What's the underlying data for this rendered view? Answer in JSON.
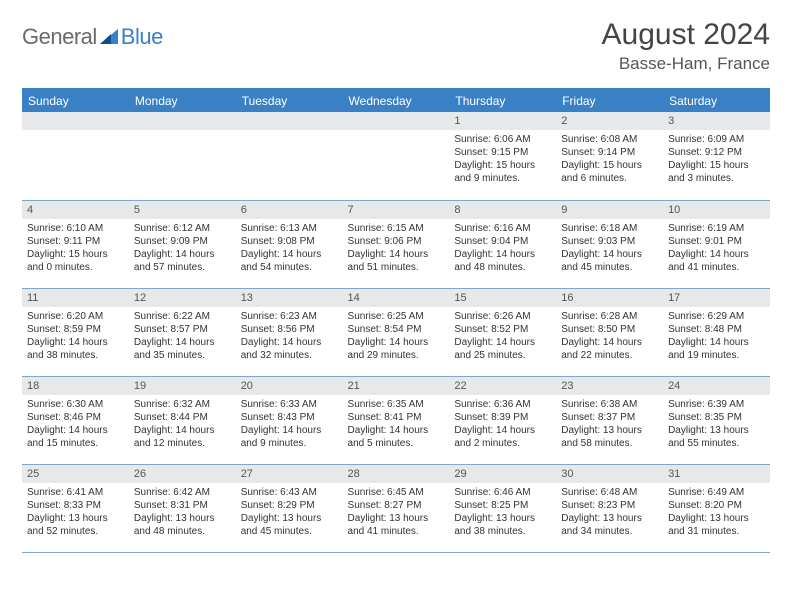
{
  "logo": {
    "part1": "General",
    "part2": "Blue"
  },
  "title": "August 2024",
  "location": "Basse-Ham, France",
  "colors": {
    "accent": "#3a80c4",
    "header_bg": "#3a80c4",
    "header_text": "#ffffff",
    "daynum_bg": "#e7e8e9",
    "row_border": "#7ea8cc",
    "text": "#333333",
    "logo_gray": "#6a6a6a",
    "logo_blue": "#3a80c4",
    "background": "#ffffff"
  },
  "typography": {
    "title_fontsize": 30,
    "location_fontsize": 17,
    "weekday_fontsize": 12,
    "daynum_fontsize": 11,
    "body_fontsize": 10
  },
  "weekdays": [
    "Sunday",
    "Monday",
    "Tuesday",
    "Wednesday",
    "Thursday",
    "Friday",
    "Saturday"
  ],
  "weeks": [
    [
      null,
      null,
      null,
      null,
      {
        "n": "1",
        "sunrise": "Sunrise: 6:06 AM",
        "sunset": "Sunset: 9:15 PM",
        "daylight": "Daylight: 15 hours and 9 minutes."
      },
      {
        "n": "2",
        "sunrise": "Sunrise: 6:08 AM",
        "sunset": "Sunset: 9:14 PM",
        "daylight": "Daylight: 15 hours and 6 minutes."
      },
      {
        "n": "3",
        "sunrise": "Sunrise: 6:09 AM",
        "sunset": "Sunset: 9:12 PM",
        "daylight": "Daylight: 15 hours and 3 minutes."
      }
    ],
    [
      {
        "n": "4",
        "sunrise": "Sunrise: 6:10 AM",
        "sunset": "Sunset: 9:11 PM",
        "daylight": "Daylight: 15 hours and 0 minutes."
      },
      {
        "n": "5",
        "sunrise": "Sunrise: 6:12 AM",
        "sunset": "Sunset: 9:09 PM",
        "daylight": "Daylight: 14 hours and 57 minutes."
      },
      {
        "n": "6",
        "sunrise": "Sunrise: 6:13 AM",
        "sunset": "Sunset: 9:08 PM",
        "daylight": "Daylight: 14 hours and 54 minutes."
      },
      {
        "n": "7",
        "sunrise": "Sunrise: 6:15 AM",
        "sunset": "Sunset: 9:06 PM",
        "daylight": "Daylight: 14 hours and 51 minutes."
      },
      {
        "n": "8",
        "sunrise": "Sunrise: 6:16 AM",
        "sunset": "Sunset: 9:04 PM",
        "daylight": "Daylight: 14 hours and 48 minutes."
      },
      {
        "n": "9",
        "sunrise": "Sunrise: 6:18 AM",
        "sunset": "Sunset: 9:03 PM",
        "daylight": "Daylight: 14 hours and 45 minutes."
      },
      {
        "n": "10",
        "sunrise": "Sunrise: 6:19 AM",
        "sunset": "Sunset: 9:01 PM",
        "daylight": "Daylight: 14 hours and 41 minutes."
      }
    ],
    [
      {
        "n": "11",
        "sunrise": "Sunrise: 6:20 AM",
        "sunset": "Sunset: 8:59 PM",
        "daylight": "Daylight: 14 hours and 38 minutes."
      },
      {
        "n": "12",
        "sunrise": "Sunrise: 6:22 AM",
        "sunset": "Sunset: 8:57 PM",
        "daylight": "Daylight: 14 hours and 35 minutes."
      },
      {
        "n": "13",
        "sunrise": "Sunrise: 6:23 AM",
        "sunset": "Sunset: 8:56 PM",
        "daylight": "Daylight: 14 hours and 32 minutes."
      },
      {
        "n": "14",
        "sunrise": "Sunrise: 6:25 AM",
        "sunset": "Sunset: 8:54 PM",
        "daylight": "Daylight: 14 hours and 29 minutes."
      },
      {
        "n": "15",
        "sunrise": "Sunrise: 6:26 AM",
        "sunset": "Sunset: 8:52 PM",
        "daylight": "Daylight: 14 hours and 25 minutes."
      },
      {
        "n": "16",
        "sunrise": "Sunrise: 6:28 AM",
        "sunset": "Sunset: 8:50 PM",
        "daylight": "Daylight: 14 hours and 22 minutes."
      },
      {
        "n": "17",
        "sunrise": "Sunrise: 6:29 AM",
        "sunset": "Sunset: 8:48 PM",
        "daylight": "Daylight: 14 hours and 19 minutes."
      }
    ],
    [
      {
        "n": "18",
        "sunrise": "Sunrise: 6:30 AM",
        "sunset": "Sunset: 8:46 PM",
        "daylight": "Daylight: 14 hours and 15 minutes."
      },
      {
        "n": "19",
        "sunrise": "Sunrise: 6:32 AM",
        "sunset": "Sunset: 8:44 PM",
        "daylight": "Daylight: 14 hours and 12 minutes."
      },
      {
        "n": "20",
        "sunrise": "Sunrise: 6:33 AM",
        "sunset": "Sunset: 8:43 PM",
        "daylight": "Daylight: 14 hours and 9 minutes."
      },
      {
        "n": "21",
        "sunrise": "Sunrise: 6:35 AM",
        "sunset": "Sunset: 8:41 PM",
        "daylight": "Daylight: 14 hours and 5 minutes."
      },
      {
        "n": "22",
        "sunrise": "Sunrise: 6:36 AM",
        "sunset": "Sunset: 8:39 PM",
        "daylight": "Daylight: 14 hours and 2 minutes."
      },
      {
        "n": "23",
        "sunrise": "Sunrise: 6:38 AM",
        "sunset": "Sunset: 8:37 PM",
        "daylight": "Daylight: 13 hours and 58 minutes."
      },
      {
        "n": "24",
        "sunrise": "Sunrise: 6:39 AM",
        "sunset": "Sunset: 8:35 PM",
        "daylight": "Daylight: 13 hours and 55 minutes."
      }
    ],
    [
      {
        "n": "25",
        "sunrise": "Sunrise: 6:41 AM",
        "sunset": "Sunset: 8:33 PM",
        "daylight": "Daylight: 13 hours and 52 minutes."
      },
      {
        "n": "26",
        "sunrise": "Sunrise: 6:42 AM",
        "sunset": "Sunset: 8:31 PM",
        "daylight": "Daylight: 13 hours and 48 minutes."
      },
      {
        "n": "27",
        "sunrise": "Sunrise: 6:43 AM",
        "sunset": "Sunset: 8:29 PM",
        "daylight": "Daylight: 13 hours and 45 minutes."
      },
      {
        "n": "28",
        "sunrise": "Sunrise: 6:45 AM",
        "sunset": "Sunset: 8:27 PM",
        "daylight": "Daylight: 13 hours and 41 minutes."
      },
      {
        "n": "29",
        "sunrise": "Sunrise: 6:46 AM",
        "sunset": "Sunset: 8:25 PM",
        "daylight": "Daylight: 13 hours and 38 minutes."
      },
      {
        "n": "30",
        "sunrise": "Sunrise: 6:48 AM",
        "sunset": "Sunset: 8:23 PM",
        "daylight": "Daylight: 13 hours and 34 minutes."
      },
      {
        "n": "31",
        "sunrise": "Sunrise: 6:49 AM",
        "sunset": "Sunset: 8:20 PM",
        "daylight": "Daylight: 13 hours and 31 minutes."
      }
    ]
  ]
}
